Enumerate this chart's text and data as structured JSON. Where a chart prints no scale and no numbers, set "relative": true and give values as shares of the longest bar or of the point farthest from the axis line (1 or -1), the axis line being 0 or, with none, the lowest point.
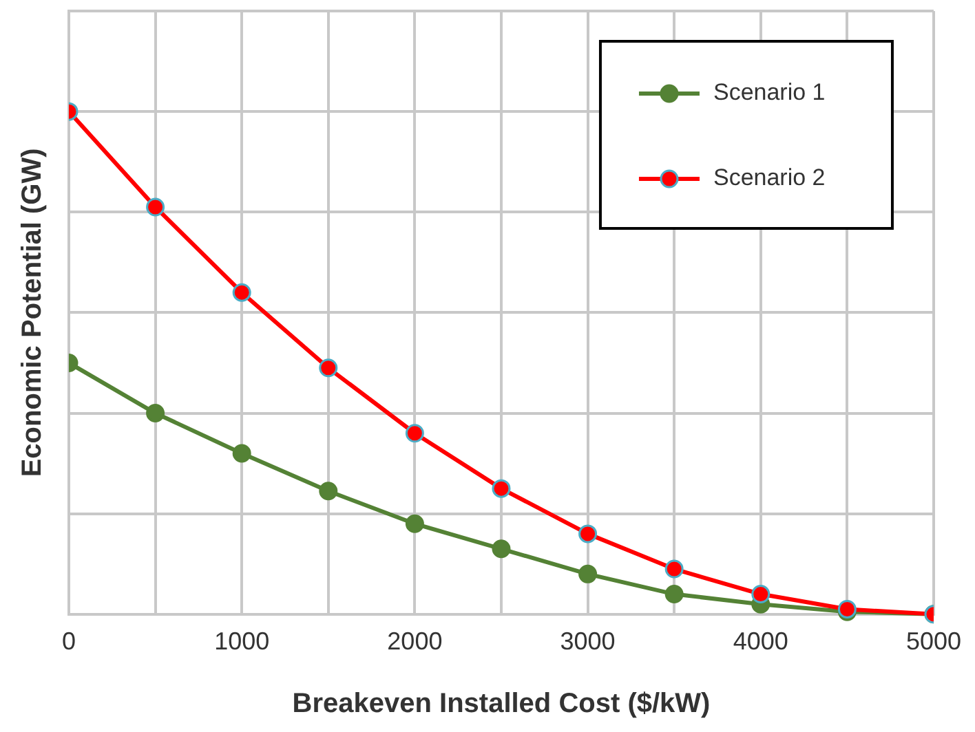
{
  "chart_data": {
    "type": "line",
    "xlabel": "Breakeven Installed Cost ($/kW)",
    "ylabel": "Economic Potential (GW)",
    "relative": true,
    "x": [
      0,
      500,
      1000,
      1500,
      2000,
      2500,
      3000,
      3500,
      4000,
      4500,
      5000
    ],
    "xlim": [
      0,
      5000
    ],
    "xticks": [
      0,
      {
        "value": 500,
        "label": null
      },
      1000,
      {
        "value": 1500,
        "label": null
      },
      2000,
      {
        "value": 2500,
        "label": null
      },
      3000,
      {
        "value": 3500,
        "label": null
      },
      4000,
      {
        "value": 4500,
        "label": null
      },
      5000
    ],
    "series": [
      {
        "name": "Scenario 1",
        "color": "#548235",
        "values": [
          0.5,
          0.4,
          0.32,
          0.245,
          0.18,
          0.13,
          0.08,
          0.04,
          0.02,
          0.005,
          0
        ]
      },
      {
        "name": "Scenario 2",
        "color": "#ff0000",
        "values": [
          1,
          0.81,
          0.64,
          0.49,
          0.36,
          0.25,
          0.16,
          0.09,
          0.04,
          0.01,
          0
        ]
      }
    ],
    "grid": true,
    "legend": "top right",
    "marker": "circle",
    "line_style": "solid"
  }
}
